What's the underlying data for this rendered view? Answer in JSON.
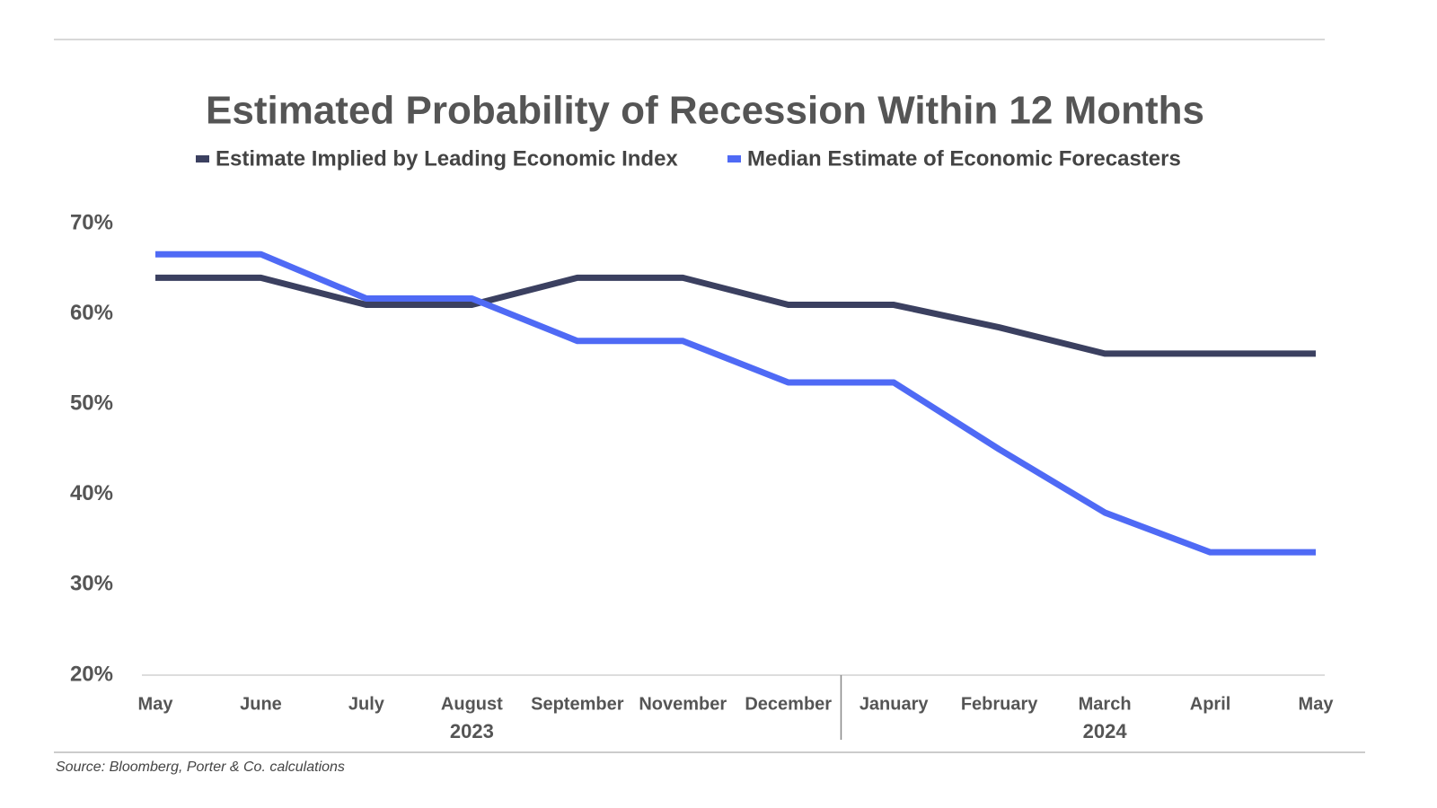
{
  "chart_data": {
    "type": "line",
    "title": "Estimated Probability of Recession Within 12 Months",
    "source": "Source: Bloomberg, Porter & Co. calculations",
    "categories": [
      "May",
      "June",
      "July",
      "August",
      "September",
      "November",
      "December",
      "January",
      "February",
      "March",
      "April",
      "May"
    ],
    "x_groups": [
      {
        "label": "2023",
        "start": 0,
        "end": 6
      },
      {
        "label": "2024",
        "start": 7,
        "end": 11
      }
    ],
    "series": [
      {
        "name": "Estimate Implied by Leading Economic Index",
        "color": "#3b4060",
        "values": [
          64,
          64,
          61,
          61,
          64,
          64,
          61,
          61,
          58.5,
          55.6,
          55.6,
          55.6
        ]
      },
      {
        "name": "Median Estimate of Economic Forecasters",
        "color": "#4f6af5",
        "values": [
          66.6,
          66.6,
          61.7,
          61.7,
          57,
          57,
          52.4,
          52.4,
          45,
          38,
          33.6,
          33.6
        ]
      }
    ],
    "ylim": [
      20,
      70
    ],
    "yticks": [
      {
        "value": 20,
        "label": "20%"
      },
      {
        "value": 30,
        "label": "30%"
      },
      {
        "value": 40,
        "label": "40%"
      },
      {
        "value": 50,
        "label": "50%"
      },
      {
        "value": 60,
        "label": "60%"
      },
      {
        "value": 70,
        "label": "70%"
      }
    ],
    "grid": false
  }
}
